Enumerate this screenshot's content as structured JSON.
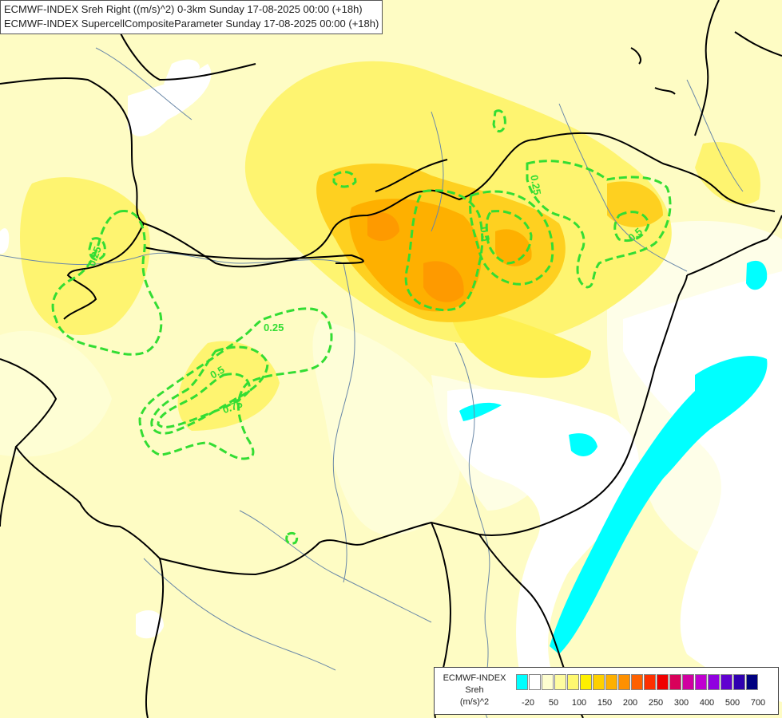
{
  "header": {
    "line1": "ECMWF-INDEX Sreh Right ((m/s)^2) 0-3km Sunday 17-08-2025 00:00 (+18h)",
    "line2": "ECMWF-INDEX SupercellCompositeParameter Sunday 17-08-2025 00:00 (+18h)"
  },
  "contour_labels": [
    "0.25",
    "0.5",
    "0.75",
    "0.25",
    "0.5",
    "0.5",
    "0.25"
  ],
  "legend": {
    "model": "ECMWF-INDEX",
    "variable": "Sreh",
    "unit": "(m/s)^2",
    "colors": [
      "#00ffff",
      "#ffffff",
      "#fefed0",
      "#fefca0",
      "#fef870",
      "#fef000",
      "#fed000",
      "#feb000",
      "#fe9000",
      "#fe6000",
      "#fe3000",
      "#f00000",
      "#d8005a",
      "#d000a0",
      "#c000d0",
      "#9000e0",
      "#6000d0",
      "#3000b0",
      "#000080"
    ],
    "tick_labels": [
      "-20",
      "50",
      "100",
      "150",
      "200",
      "250",
      "300",
      "400",
      "500",
      "700"
    ]
  },
  "colors": {
    "scp_contour": "#33dd33",
    "border": "#000000",
    "river": "#6a88a8",
    "background": "#fefcc4"
  }
}
